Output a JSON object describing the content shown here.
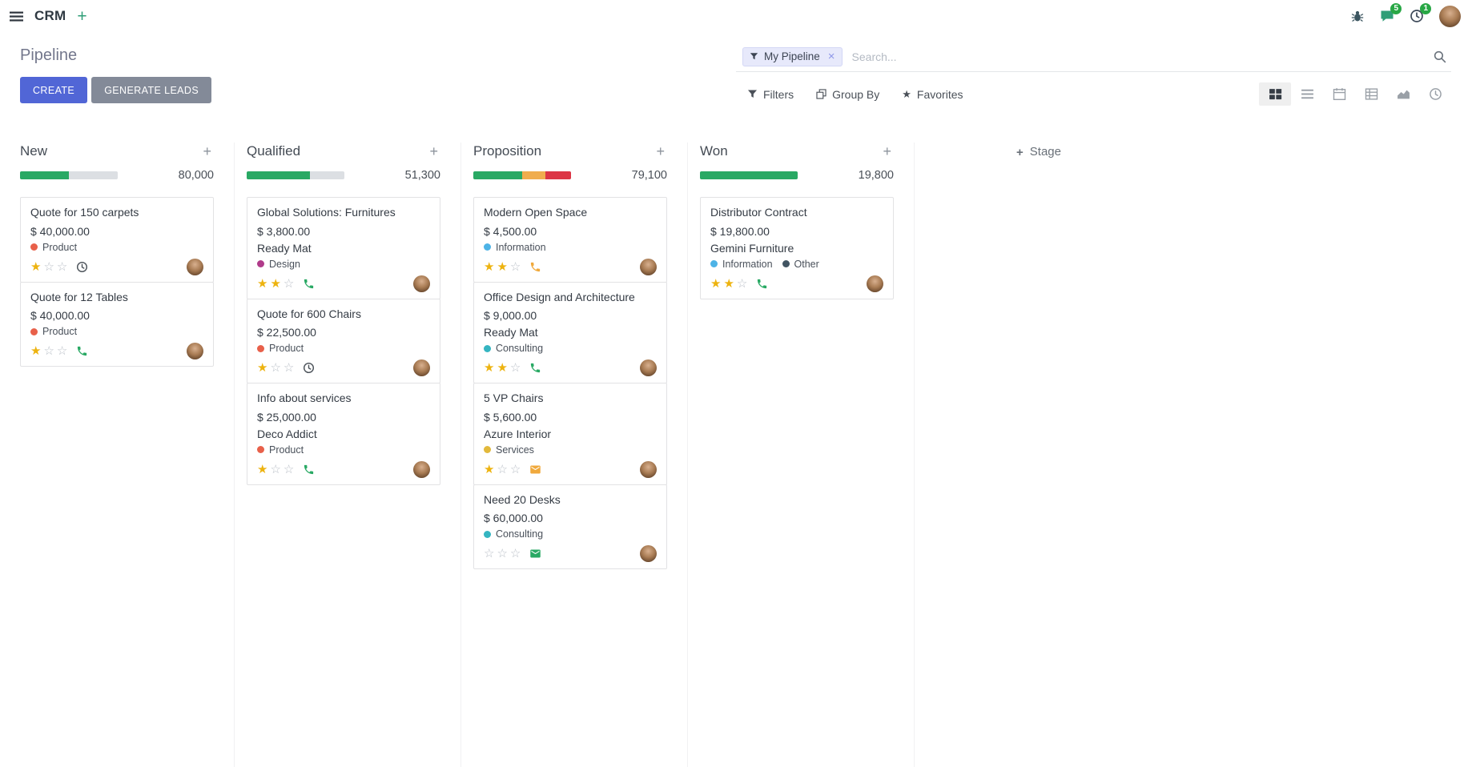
{
  "navbar": {
    "app_name": "CRM",
    "messages_badge": "5",
    "activities_badge": "1",
    "icons": [
      "menu-icon",
      "plus-icon",
      "bug-icon",
      "messages-icon",
      "activities-clock-icon",
      "avatar"
    ]
  },
  "control_panel": {
    "title": "Pipeline",
    "buttons": {
      "create": "CREATE",
      "generate_leads": "GENERATE LEADS"
    },
    "search": {
      "facet_label": "My Pipeline",
      "placeholder": "Search...",
      "remove_facet": "×"
    },
    "filter_menus": {
      "filters": "Filters",
      "group_by": "Group By",
      "favorites": "Favorites"
    },
    "view_switcher": [
      "kanban-view-icon",
      "list-view-icon",
      "calendar-view-icon",
      "pivot-view-icon",
      "graph-view-icon",
      "activity-view-icon"
    ],
    "active_view": "kanban"
  },
  "kanban": {
    "add_column_label": "Stage",
    "columns": [
      {
        "title": "New",
        "count_label": "80,000",
        "progress": [
          {
            "color": "green",
            "pct": 50
          }
        ],
        "cards": [
          {
            "title": "Quote for 150 carpets",
            "amount": "$ 40,000.00",
            "tags": [
              {
                "label": "Product",
                "color": "red"
              }
            ],
            "stars": 1,
            "activity": {
              "icon": "clock",
              "color": "muted"
            }
          },
          {
            "title": "Quote for 12 Tables",
            "amount": "$ 40,000.00",
            "tags": [
              {
                "label": "Product",
                "color": "red"
              }
            ],
            "stars": 1,
            "activity": {
              "icon": "phone",
              "color": "green"
            }
          }
        ]
      },
      {
        "title": "Qualified",
        "count_label": "51,300",
        "progress": [
          {
            "color": "green",
            "pct": 65
          }
        ],
        "cards": [
          {
            "title": "Global Solutions: Furnitures",
            "amount": "$ 3,800.00",
            "partner": "Ready Mat",
            "tags": [
              {
                "label": "Design",
                "color": "purple"
              }
            ],
            "stars": 2,
            "activity": {
              "icon": "phone",
              "color": "green"
            }
          },
          {
            "title": "Quote for 600 Chairs",
            "amount": "$ 22,500.00",
            "tags": [
              {
                "label": "Product",
                "color": "red"
              }
            ],
            "stars": 1,
            "activity": {
              "icon": "clock",
              "color": "muted"
            }
          },
          {
            "title": "Info about services",
            "amount": "$ 25,000.00",
            "partner": "Deco Addict",
            "tags": [
              {
                "label": "Product",
                "color": "red"
              }
            ],
            "stars": 1,
            "activity": {
              "icon": "phone",
              "color": "green"
            }
          }
        ]
      },
      {
        "title": "Proposition",
        "count_label": "79,100",
        "progress": [
          {
            "color": "green",
            "pct": 50
          },
          {
            "color": "yellow",
            "pct": 24
          },
          {
            "color": "red",
            "pct": 26
          }
        ],
        "cards": [
          {
            "title": "Modern Open Space",
            "amount": "$ 4,500.00",
            "tags": [
              {
                "label": "Information",
                "color": "blue"
              }
            ],
            "stars": 2,
            "activity": {
              "icon": "phone",
              "color": "orange"
            }
          },
          {
            "title": "Office Design and Architecture",
            "amount": "$ 9,000.00",
            "partner": "Ready Mat",
            "tags": [
              {
                "label": "Consulting",
                "color": "teal"
              }
            ],
            "stars": 2,
            "activity": {
              "icon": "phone",
              "color": "green"
            }
          },
          {
            "title": "5 VP Chairs",
            "amount": "$ 5,600.00",
            "partner": "Azure Interior",
            "tags": [
              {
                "label": "Services",
                "color": "yellow"
              }
            ],
            "stars": 1,
            "activity": {
              "icon": "envelope",
              "color": "orange"
            }
          },
          {
            "title": "Need 20 Desks",
            "amount": "$ 60,000.00",
            "tags": [
              {
                "label": "Consulting",
                "color": "teal"
              }
            ],
            "stars": 0,
            "activity": {
              "icon": "envelope",
              "color": "green"
            }
          }
        ]
      },
      {
        "title": "Won",
        "count_label": "19,800",
        "progress": [
          {
            "color": "green",
            "pct": 100
          }
        ],
        "cards": [
          {
            "title": "Distributor Contract",
            "amount": "$ 19,800.00",
            "partner": "Gemini Furniture",
            "tags": [
              {
                "label": "Information",
                "color": "blue"
              },
              {
                "label": "Other",
                "color": "dark"
              }
            ],
            "stars": 2,
            "activity": {
              "icon": "phone",
              "color": "green"
            }
          }
        ]
      }
    ]
  },
  "colors": {
    "green": "#29a964",
    "yellow": "#f0ad4e",
    "red": "#dc3545",
    "orange": "#f0a93c",
    "muted": "#4a5158",
    "accent": "#5166d6",
    "star_gold": "#edb30f",
    "badge_green": "#28a745",
    "tag_red": "#e8604a",
    "tag_purple": "#b03b8a",
    "tag_blue": "#4db3e6",
    "tag_teal": "#35b5c1",
    "tag_yellow": "#e2b93b",
    "tag_dark": "#415462"
  }
}
